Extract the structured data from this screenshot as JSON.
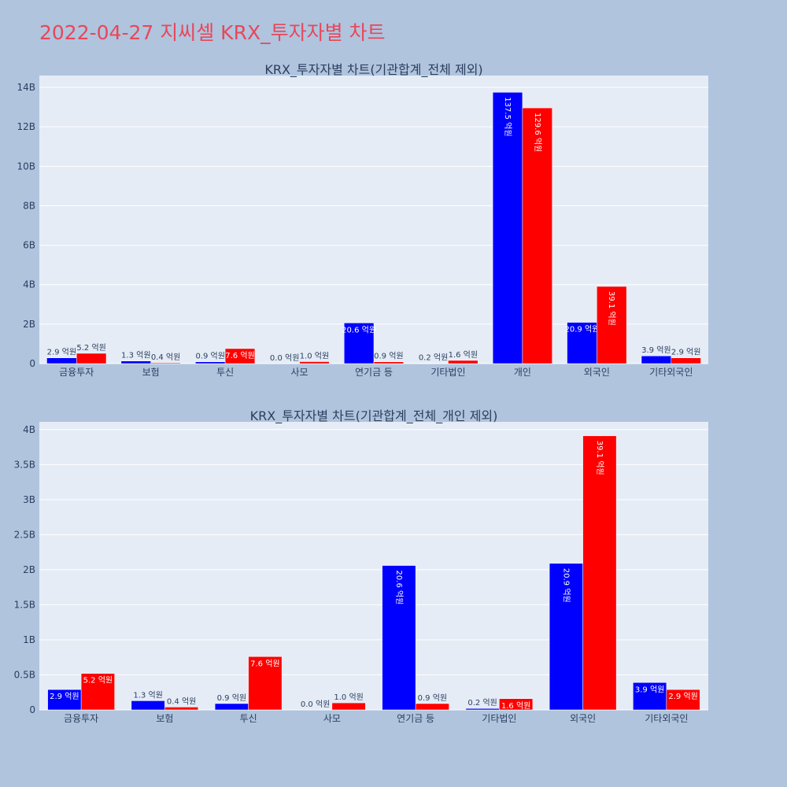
{
  "page": {
    "title": "2022-04-27 지씨셀 KRX_투자자별 차트"
  },
  "colors": {
    "background": "#b0c4de",
    "plot_bg": "#e5ecf6",
    "buy": "#0000ff",
    "sell": "#ff0000",
    "title": "#e8475a",
    "grid": "#ffffff"
  },
  "chart_data": [
    {
      "type": "bar",
      "title": "KRX_투자자별 차트(기관합계_전체 제외)",
      "categories": [
        "금융투자",
        "보험",
        "투신",
        "사모",
        "연기금 등",
        "기타법인",
        "개인",
        "외국인",
        "기타외국인"
      ],
      "series": [
        {
          "color": "#0000ff",
          "values": [
            290000000,
            130000000,
            90000000,
            0,
            2060000000,
            20000000,
            13750000000,
            2090000000,
            390000000
          ],
          "labels": [
            "2.9 억원",
            "1.3 억원",
            "0.9 억원",
            "0.0 억원",
            "20.6 억원",
            "0.2 억원",
            "137.5 억원",
            "20.9 억원",
            "3.9 억원"
          ]
        },
        {
          "color": "#ff0000",
          "values": [
            520000000,
            40000000,
            760000000,
            100000000,
            90000000,
            160000000,
            12960000000,
            3910000000,
            290000000
          ],
          "labels": [
            "5.2 억원",
            "0.4 억원",
            "7.6 억원",
            "1.0 억원",
            "0.9 억원",
            "1.6 억원",
            "129.6 억원",
            "39.1 억원",
            "2.9 억원"
          ]
        }
      ],
      "y_ticks": [
        "0",
        "2B",
        "4B",
        "6B",
        "8B",
        "10B",
        "12B",
        "14B"
      ],
      "y_tick_values": [
        0,
        2000000000,
        4000000000,
        6000000000,
        8000000000,
        10000000000,
        12000000000,
        14000000000
      ],
      "ylim": [
        0,
        14600000000
      ],
      "grid": true
    },
    {
      "type": "bar",
      "title": "KRX_투자자별 차트(기관합계_전체_개인 제외)",
      "categories": [
        "금융투자",
        "보험",
        "투신",
        "사모",
        "연기금 등",
        "기타법인",
        "외국인",
        "기타외국인"
      ],
      "series": [
        {
          "color": "#0000ff",
          "values": [
            290000000,
            130000000,
            90000000,
            0,
            2060000000,
            20000000,
            2090000000,
            390000000
          ],
          "labels": [
            "2.9 억원",
            "1.3 억원",
            "0.9 억원",
            "0.0 억원",
            "20.6 억원",
            "0.2 억원",
            "20.9 억원",
            "3.9 억원"
          ]
        },
        {
          "color": "#ff0000",
          "values": [
            520000000,
            40000000,
            760000000,
            100000000,
            90000000,
            160000000,
            3910000000,
            290000000
          ],
          "labels": [
            "5.2 억원",
            "0.4 억원",
            "7.6 억원",
            "1.0 억원",
            "0.9 억원",
            "1.6 억원",
            "39.1 억원",
            "2.9 억원"
          ]
        }
      ],
      "y_ticks": [
        "0",
        "0.5B",
        "1B",
        "1.5B",
        "2B",
        "2.5B",
        "3B",
        "3.5B",
        "4B"
      ],
      "y_tick_values": [
        0,
        500000000,
        1000000000,
        1500000000,
        2000000000,
        2500000000,
        3000000000,
        3500000000,
        4000000000
      ],
      "ylim": [
        0,
        4110000000
      ],
      "grid": true
    }
  ]
}
